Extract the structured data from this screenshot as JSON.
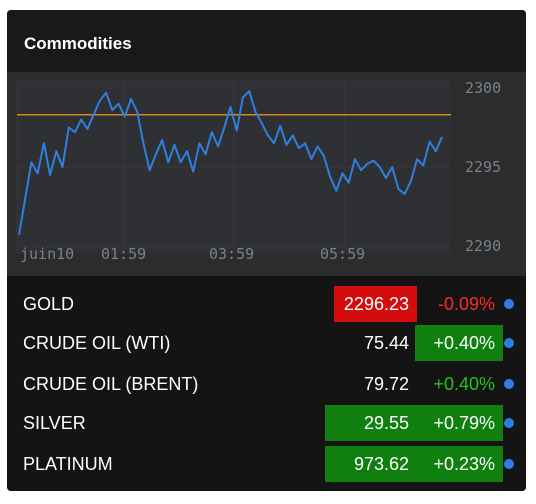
{
  "widget": {
    "title": "Commodities"
  },
  "colors": {
    "background": "#141414",
    "chart_background": "#2a2c2e",
    "line": "#2f7fe0",
    "reference_line": "#d48a1c",
    "up_text": "#22c322",
    "down_text": "#ff2a2a",
    "up_fill": "#0f7f0f",
    "down_fill": "#d30d0d",
    "dot": "#2b7fe0"
  },
  "chart_data": {
    "type": "line",
    "x_ticks": [
      "juin10",
      "01:59",
      "03:59",
      "05:59"
    ],
    "y_ticks": [
      "2300",
      "2295",
      "2290"
    ],
    "ylim": [
      2289.5,
      2300.5
    ],
    "reference_value": 2298.3,
    "grid": true,
    "series": [
      {
        "values": [
          2290.7,
          2293.0,
          2295.3,
          2294.6,
          2296.5,
          2294.5,
          2296.0,
          2295.0,
          2297.5,
          2297.2,
          2298.0,
          2297.4,
          2298.3,
          2299.2,
          2299.7,
          2298.6,
          2299.0,
          2298.2,
          2299.3,
          2298.5,
          2296.5,
          2294.8,
          2295.8,
          2296.7,
          2295.3,
          2296.4,
          2295.3,
          2296.0,
          2294.7,
          2296.5,
          2295.8,
          2297.2,
          2296.3,
          2297.5,
          2298.8,
          2297.3,
          2299.4,
          2299.8,
          2298.5,
          2297.8,
          2297.0,
          2296.5,
          2297.6,
          2296.4,
          2297.0,
          2296.2,
          2296.5,
          2295.5,
          2296.3,
          2295.7,
          2294.4,
          2293.5,
          2294.6,
          2294.0,
          2295.5,
          2294.8,
          2295.2,
          2295.4,
          2295.0,
          2294.3,
          2295.0,
          2293.6,
          2293.3,
          2294.1,
          2295.5,
          2295.1,
          2296.6,
          2296.0,
          2296.9
        ]
      }
    ]
  },
  "rows": [
    {
      "name": "GOLD",
      "price": "2296.23",
      "change": "-0.09%",
      "direction": "down",
      "price_highlight": true,
      "change_highlight": false,
      "price_box": true
    },
    {
      "name": "CRUDE OIL (WTI)",
      "price": "75.44",
      "change": "+0.40%",
      "direction": "up",
      "price_highlight": false,
      "change_highlight": true,
      "price_box": false
    },
    {
      "name": "CRUDE OIL (BRENT)",
      "price": "79.72",
      "change": "+0.40%",
      "direction": "up",
      "price_highlight": false,
      "change_highlight": false,
      "price_box": false
    },
    {
      "name": "SILVER",
      "price": "29.55",
      "change": "+0.79%",
      "direction": "up",
      "price_highlight": true,
      "change_highlight": true,
      "price_box": false
    },
    {
      "name": "PLATINUM",
      "price": "973.62",
      "change": "+0.23%",
      "direction": "up",
      "price_highlight": true,
      "change_highlight": true,
      "price_box": false
    }
  ]
}
